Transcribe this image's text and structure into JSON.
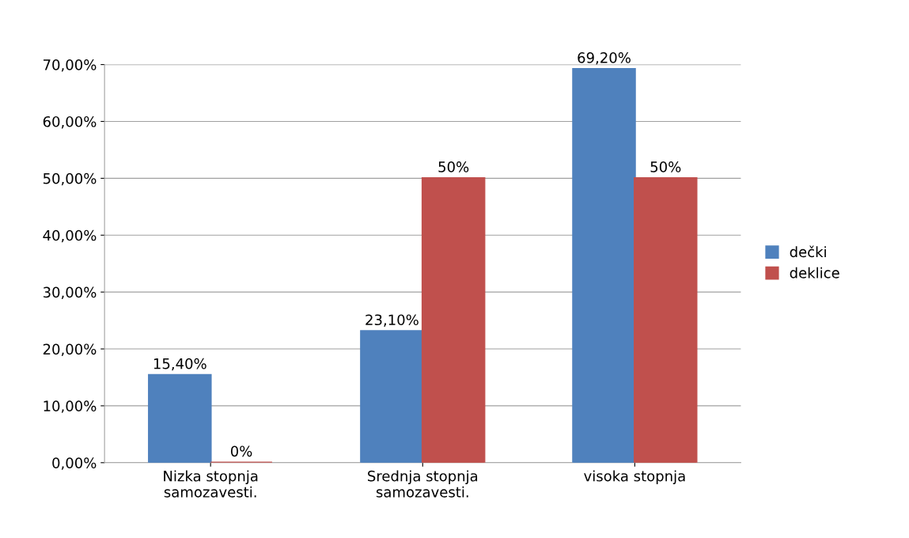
{
  "chart_data": {
    "type": "bar",
    "categories": [
      "Nizka stopnja\nsamozavesti.",
      "Srednja stopnja\nsamozavesti.",
      "visoka stopnja"
    ],
    "series": [
      {
        "name": "dečki",
        "color": "#4f81bd",
        "values": [
          15.4,
          23.1,
          69.2
        ],
        "value_labels": [
          "15,40%",
          "23,10%",
          "69,20%"
        ]
      },
      {
        "name": "deklice",
        "color": "#c0504d",
        "values": [
          0,
          50,
          50
        ],
        "value_labels": [
          "0%",
          "50%",
          "50%"
        ]
      }
    ],
    "ylim": [
      0,
      70
    ],
    "yticks": [
      {
        "value": 0,
        "label": "0,00%"
      },
      {
        "value": 10,
        "label": "10,00%"
      },
      {
        "value": 20,
        "label": "20,00%"
      },
      {
        "value": 30,
        "label": "30,00%"
      },
      {
        "value": 40,
        "label": "40,00%"
      },
      {
        "value": 50,
        "label": "50,00%"
      },
      {
        "value": 60,
        "label": "60,00%"
      },
      {
        "value": 70,
        "label": "70,00%"
      }
    ],
    "grid": "y",
    "legend": "right"
  }
}
